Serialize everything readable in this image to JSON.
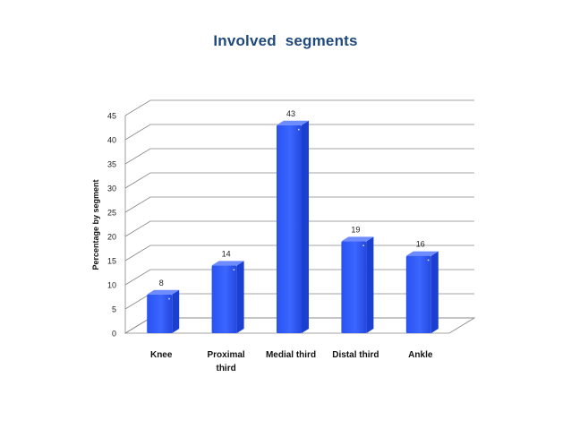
{
  "chart_data": {
    "type": "bar",
    "title": "Involved  segments",
    "ylabel": "Percentage  by segment",
    "xlabel": "",
    "categories": [
      [
        "Knee"
      ],
      [
        "Proximal",
        "third"
      ],
      [
        "Medial third"
      ],
      [
        "Distal third"
      ],
      [
        "Ankle"
      ]
    ],
    "values": [
      8,
      14,
      43,
      19,
      16
    ],
    "data_labels": [
      "8",
      "14",
      "43",
      "19",
      "16"
    ],
    "ylim": [
      0,
      45
    ],
    "yticks": [
      "0",
      "5",
      "10",
      "15",
      "20",
      "25",
      "30",
      "35",
      "40",
      "45"
    ],
    "grid": true,
    "legend": "none",
    "style": "3d-column",
    "colors": {
      "bar": "#2f5bff",
      "bar_side": "#1a3fd1",
      "title": "#1f497d",
      "grid": "#868686"
    }
  }
}
